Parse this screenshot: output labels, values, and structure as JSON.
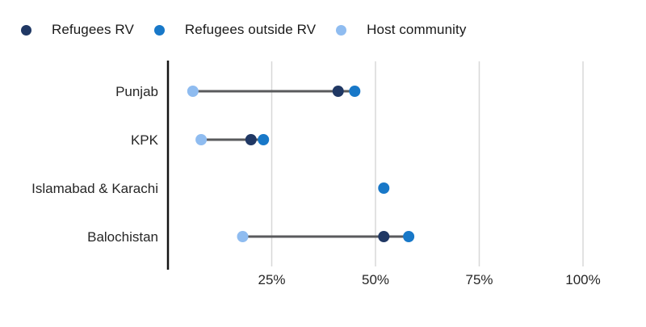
{
  "legend": {
    "items": [
      {
        "label": "Refugees RV",
        "color": "#203864"
      },
      {
        "label": "Refugees outside RV",
        "color": "#1878c8"
      },
      {
        "label": "Host community",
        "color": "#8fbcf0"
      }
    ]
  },
  "chart_data": {
    "type": "scatter",
    "subtype": "dumbbell-dot-plot",
    "title": "",
    "categories": [
      "Punjab",
      "KPK",
      "Islamabad & Karachi",
      "Balochistan"
    ],
    "series": [
      {
        "name": "Refugees RV",
        "color": "#203864",
        "values": [
          41,
          20,
          null,
          52
        ]
      },
      {
        "name": "Refugees outside RV",
        "color": "#1878c8",
        "values": [
          45,
          23,
          52,
          58
        ]
      },
      {
        "name": "Host community",
        "color": "#8fbcf0",
        "values": [
          6,
          8,
          null,
          18
        ]
      }
    ],
    "x_tick_labels": [
      "25%",
      "50%",
      "75%",
      "100%"
    ],
    "x_tick_values": [
      25,
      50,
      75,
      100
    ],
    "xlim": [
      0,
      100
    ],
    "grid": "vertical",
    "legend_position": "top-left",
    "colors": {
      "connector": "#595a5c",
      "axis": "#141414",
      "gridline": "#d8d8d8",
      "label": "#262626"
    }
  }
}
